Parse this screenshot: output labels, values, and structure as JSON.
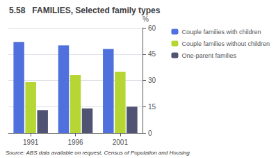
{
  "chart_data": {
    "type": "bar",
    "title": "5.58   FAMILIES, Selected family types",
    "categories": [
      "1991",
      "1996",
      "2001"
    ],
    "series": [
      {
        "name": "Couple families with children",
        "values": [
          52,
          50,
          48
        ]
      },
      {
        "name": "Couple families without children",
        "values": [
          29,
          33,
          35
        ]
      },
      {
        "name": "One-parent families",
        "values": [
          13,
          14,
          15
        ]
      }
    ],
    "ylabel": "%",
    "ylim": [
      0,
      60
    ],
    "yticks": [
      0,
      15,
      30,
      45,
      60
    ],
    "grid": true,
    "annotations": [
      "Source: ABS data available on request, Census of Population and Housing"
    ]
  }
}
